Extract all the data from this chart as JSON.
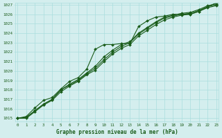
{
  "title": "Graphe pression niveau de la mer (hPa)",
  "xlabel_hours": [
    0,
    1,
    2,
    3,
    4,
    5,
    6,
    7,
    8,
    9,
    10,
    11,
    12,
    13,
    14,
    15,
    16,
    17,
    18,
    19,
    20,
    21,
    22,
    23
  ],
  "ylim": [
    1015,
    1027
  ],
  "yticks": [
    1015,
    1016,
    1017,
    1018,
    1019,
    1020,
    1021,
    1022,
    1023,
    1024,
    1025,
    1026,
    1027
  ],
  "bg_color": "#d4eeee",
  "grid_color": "#aadddd",
  "line_color": "#1a5c1a",
  "text_color": "#1a5c1a",
  "series": [
    [
      1015.0,
      1015.2,
      1016.1,
      1016.9,
      1017.2,
      1018.1,
      1018.9,
      1019.3,
      1020.2,
      1022.3,
      1022.8,
      1022.8,
      1022.9,
      1022.9,
      1024.7,
      1025.3,
      1025.7,
      1025.8,
      1026.0,
      1026.0,
      1026.0,
      1026.3,
      1026.8,
      1027.2
    ],
    [
      1015.0,
      1015.1,
      1015.8,
      1016.5,
      1017.0,
      1018.0,
      1018.6,
      1019.1,
      1019.8,
      1020.5,
      1021.5,
      1022.2,
      1022.8,
      1023.1,
      1024.0,
      1024.6,
      1025.2,
      1025.7,
      1025.9,
      1026.1,
      1026.2,
      1026.5,
      1026.9,
      1027.1
    ],
    [
      1015.0,
      1015.1,
      1015.8,
      1016.5,
      1017.0,
      1018.0,
      1018.5,
      1019.0,
      1019.7,
      1020.3,
      1021.2,
      1022.0,
      1022.6,
      1023.0,
      1023.9,
      1024.5,
      1025.1,
      1025.6,
      1025.8,
      1026.0,
      1026.1,
      1026.4,
      1026.8,
      1027.0
    ],
    [
      1015.0,
      1015.0,
      1015.7,
      1016.4,
      1016.9,
      1017.8,
      1018.4,
      1018.9,
      1019.6,
      1020.1,
      1021.0,
      1021.8,
      1022.4,
      1022.8,
      1023.7,
      1024.3,
      1024.9,
      1025.4,
      1025.7,
      1025.9,
      1026.0,
      1026.3,
      1026.7,
      1026.9
    ]
  ]
}
